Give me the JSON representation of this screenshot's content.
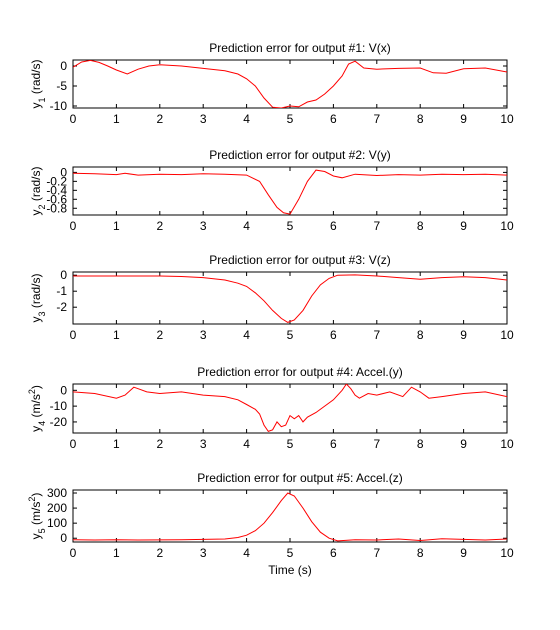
{
  "colors": {
    "line": "#ff0000",
    "axes": "#000000",
    "background": "#ffffff"
  },
  "chart_data": [
    {
      "type": "line",
      "title": "Prediction error for output #1: V(x)",
      "ylabel_main": "y",
      "ylabel_sub": "1",
      "ylabel_unit": " (rad/s)",
      "ylabel_sup": "",
      "ylabel_unit_tail": "",
      "xlabel": "",
      "xlim": [
        0,
        10
      ],
      "ylim": [
        -10.5,
        1.5
      ],
      "yticks": [
        -10,
        -5,
        0
      ],
      "xticks": [
        0,
        1,
        2,
        3,
        4,
        5,
        6,
        7,
        8,
        9,
        10
      ],
      "series": [
        {
          "x": [
            0,
            0.2,
            0.4,
            0.6,
            0.8,
            1.0,
            1.25,
            1.5,
            1.75,
            2.0,
            2.5,
            3.0,
            3.5,
            3.8,
            4.0,
            4.2,
            4.4,
            4.6,
            4.8,
            5.0,
            5.2,
            5.4,
            5.6,
            5.8,
            6.0,
            6.2,
            6.35,
            6.5,
            6.7,
            7.0,
            7.5,
            8.0,
            8.3,
            8.6,
            9.0,
            9.5,
            10.0
          ],
          "y": [
            -0.3,
            1.0,
            1.4,
            0.9,
            0.0,
            -1.0,
            -2.0,
            -0.8,
            0.0,
            0.3,
            0.0,
            -0.6,
            -1.2,
            -2.0,
            -3.2,
            -5.0,
            -8.0,
            -10.3,
            -10.5,
            -10.0,
            -10.2,
            -9.0,
            -8.5,
            -7.0,
            -5.0,
            -2.5,
            0.5,
            1.2,
            -0.5,
            -0.8,
            -0.6,
            -0.5,
            -1.7,
            -1.8,
            -0.7,
            -0.5,
            -1.5
          ]
        }
      ]
    },
    {
      "type": "line",
      "title": "Prediction error for output #2: V(y)",
      "ylabel_main": "y",
      "ylabel_sub": "2",
      "ylabel_unit": " (rad/s)",
      "ylabel_sup": "",
      "ylabel_unit_tail": "",
      "xlabel": "",
      "xlim": [
        0,
        10
      ],
      "ylim": [
        -0.95,
        0.12
      ],
      "yticks": [
        -0.8,
        -0.6,
        -0.4,
        -0.2,
        0
      ],
      "ytick_labels": [
        "-0.8",
        "-0.6",
        "-0.4",
        "-0.2",
        "0"
      ],
      "xticks": [
        0,
        1,
        2,
        3,
        4,
        5,
        6,
        7,
        8,
        9,
        10
      ],
      "series": [
        {
          "x": [
            0,
            0.5,
            1.0,
            1.2,
            1.5,
            2.0,
            2.5,
            3.0,
            3.5,
            4.0,
            4.3,
            4.5,
            4.7,
            4.85,
            5.0,
            5.2,
            5.4,
            5.6,
            5.8,
            6.0,
            6.2,
            6.5,
            7.0,
            7.5,
            8.0,
            8.5,
            9.0,
            9.5,
            10.0
          ],
          "y": [
            -0.02,
            -0.03,
            -0.05,
            -0.02,
            -0.06,
            -0.04,
            -0.05,
            -0.03,
            -0.04,
            -0.06,
            -0.2,
            -0.5,
            -0.78,
            -0.9,
            -0.93,
            -0.6,
            -0.2,
            0.05,
            0.02,
            -0.08,
            -0.12,
            -0.04,
            -0.07,
            -0.05,
            -0.06,
            -0.04,
            -0.05,
            -0.04,
            -0.06
          ]
        }
      ]
    },
    {
      "type": "line",
      "title": "Prediction error for output #3: V(z)",
      "ylabel_main": "y",
      "ylabel_sub": "3",
      "ylabel_unit": " (rad/s)",
      "ylabel_sup": "",
      "ylabel_unit_tail": "",
      "xlabel": "",
      "xlim": [
        0,
        10
      ],
      "ylim": [
        -3.05,
        0.2
      ],
      "yticks": [
        -2,
        -1,
        0
      ],
      "xticks": [
        0,
        1,
        2,
        3,
        4,
        5,
        6,
        7,
        8,
        9,
        10
      ],
      "series": [
        {
          "x": [
            0,
            1.0,
            2.0,
            2.5,
            3.0,
            3.5,
            3.8,
            4.0,
            4.2,
            4.4,
            4.6,
            4.8,
            4.95,
            5.1,
            5.3,
            5.5,
            5.7,
            5.9,
            6.1,
            6.5,
            7.0,
            7.5,
            8.0,
            8.5,
            9.0,
            9.5,
            10.0
          ],
          "y": [
            -0.05,
            -0.05,
            -0.05,
            -0.08,
            -0.15,
            -0.3,
            -0.5,
            -0.7,
            -1.1,
            -1.6,
            -2.2,
            -2.7,
            -2.95,
            -2.8,
            -2.2,
            -1.3,
            -0.6,
            -0.2,
            0.0,
            0.02,
            -0.05,
            -0.15,
            -0.25,
            -0.15,
            -0.1,
            -0.15,
            -0.3
          ]
        }
      ]
    },
    {
      "type": "line",
      "title": "Prediction error for output #4: Accel.(y)",
      "ylabel_main": "y",
      "ylabel_sub": "4",
      "ylabel_unit": " (m/s",
      "ylabel_sup": "2",
      "ylabel_unit_tail": ")",
      "xlabel": "",
      "xlim": [
        0,
        10
      ],
      "ylim": [
        -27,
        4
      ],
      "yticks": [
        -20,
        -10,
        0
      ],
      "xticks": [
        0,
        1,
        2,
        3,
        4,
        5,
        6,
        7,
        8,
        9,
        10
      ],
      "series": [
        {
          "x": [
            0,
            0.5,
            1.0,
            1.2,
            1.4,
            1.5,
            1.7,
            2.0,
            2.5,
            3.0,
            3.5,
            3.8,
            4.0,
            4.2,
            4.3,
            4.4,
            4.5,
            4.6,
            4.7,
            4.8,
            4.9,
            5.0,
            5.1,
            5.2,
            5.3,
            5.4,
            5.6,
            5.8,
            6.0,
            6.2,
            6.3,
            6.4,
            6.5,
            6.6,
            6.8,
            7.0,
            7.3,
            7.6,
            7.8,
            8.0,
            8.2,
            8.5,
            9.0,
            9.5,
            10.0
          ],
          "y": [
            -1,
            -2,
            -5,
            -3,
            2,
            1,
            -1,
            -2,
            -1,
            -3,
            -4,
            -6,
            -9,
            -12,
            -15,
            -22,
            -26,
            -25,
            -20,
            -23,
            -22,
            -16,
            -18,
            -16,
            -20,
            -17,
            -14,
            -10,
            -6,
            0,
            4,
            1,
            -3,
            -5,
            -2,
            -3,
            -1,
            -4,
            2,
            -1,
            -5,
            -4,
            -2,
            -1,
            -4
          ]
        }
      ]
    },
    {
      "type": "line",
      "title": "Prediction error for output #5: Accel.(z)",
      "ylabel_main": "y",
      "ylabel_sub": "5",
      "ylabel_unit": " (m/s",
      "ylabel_sup": "2",
      "ylabel_unit_tail": ")",
      "xlabel": "Time (s)",
      "xlim": [
        0,
        10
      ],
      "ylim": [
        -25,
        320
      ],
      "yticks": [
        0,
        100,
        200,
        300
      ],
      "xticks": [
        0,
        1,
        2,
        3,
        4,
        5,
        6,
        7,
        8,
        9,
        10
      ],
      "series": [
        {
          "x": [
            0,
            0.5,
            1.0,
            1.5,
            2.0,
            2.5,
            3.0,
            3.5,
            3.8,
            4.0,
            4.2,
            4.4,
            4.6,
            4.8,
            4.95,
            5.1,
            5.3,
            5.5,
            5.7,
            5.9,
            6.1,
            6.5,
            7.0,
            7.5,
            8.0,
            8.5,
            9.0,
            9.5,
            10.0
          ],
          "y": [
            -10,
            -12,
            -10,
            -12,
            -11,
            -10,
            -8,
            -5,
            5,
            20,
            50,
            100,
            170,
            250,
            300,
            280,
            200,
            110,
            40,
            0,
            -18,
            -10,
            -12,
            -5,
            -15,
            -3,
            -8,
            -12,
            -5
          ]
        }
      ]
    }
  ]
}
